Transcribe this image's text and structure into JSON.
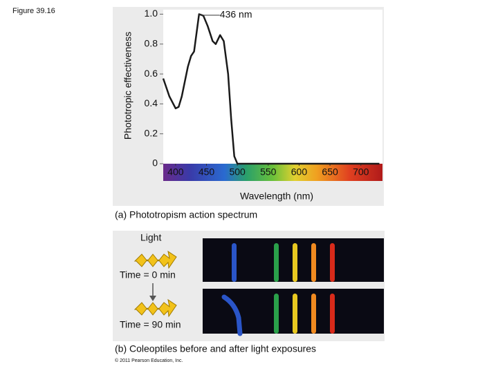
{
  "figure_label": "Figure 39.16",
  "chart_data": {
    "type": "line",
    "ylabel": "Phototropic effectiveness",
    "xlabel": "Wavelength (nm)",
    "annotation": "436 nm",
    "caption": "(a) Phototropism action spectrum",
    "x": [
      380,
      390,
      400,
      405,
      410,
      420,
      425,
      430,
      438,
      445,
      452,
      460,
      465,
      472,
      478,
      485,
      490,
      495,
      500,
      550,
      600,
      650,
      700,
      730
    ],
    "series": [
      {
        "color": "#1a1a1a",
        "values": [
          0.57,
          0.45,
          0.37,
          0.38,
          0.45,
          0.65,
          0.72,
          0.75,
          1.0,
          0.99,
          0.92,
          0.82,
          0.8,
          0.86,
          0.82,
          0.6,
          0.3,
          0.05,
          0,
          0,
          0,
          0,
          0,
          0
        ]
      }
    ],
    "xlim": [
      380,
      735
    ],
    "ylim": [
      0,
      1.03
    ],
    "xticks": [
      400,
      450,
      500,
      550,
      600,
      650,
      700
    ],
    "yticks": [
      0,
      0.2,
      0.4,
      0.6,
      0.8,
      {
        "value": 1,
        "label": "1.0"
      }
    ]
  },
  "panel_b": {
    "light": "Light",
    "time_before": "Time = 0 min",
    "time_after": "Time = 90 min",
    "caption": "(b) Coleoptiles before and after light exposures"
  },
  "copyright": "© 2011 Pearson Education, Inc."
}
